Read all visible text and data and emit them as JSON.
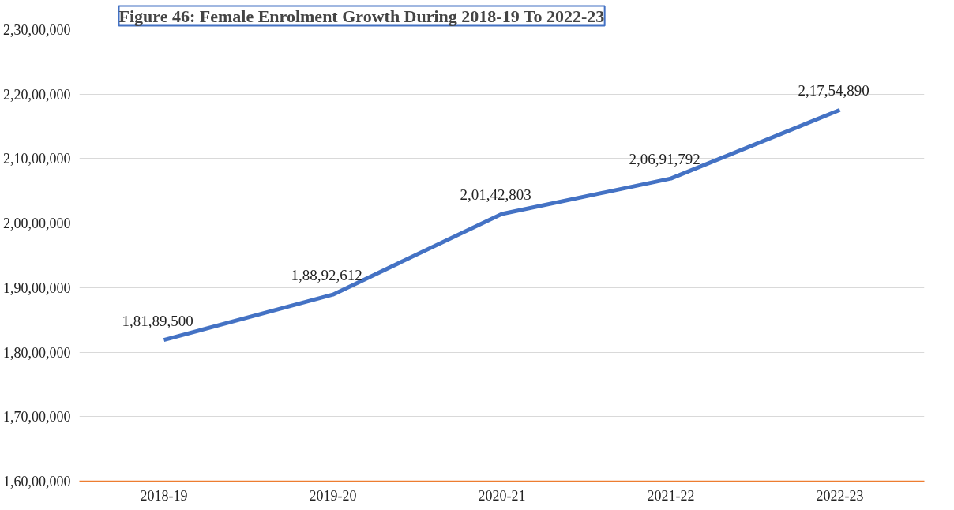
{
  "chart_data": {
    "type": "line",
    "title": "Figure 46: Female Enrolment Growth During 2018-19 To 2022-23",
    "categories": [
      "2018-19",
      "2019-20",
      "2020-21",
      "2021-22",
      "2022-23"
    ],
    "series": [
      {
        "color": "#4472c4",
        "values": [
          18189500,
          18892612,
          20142803,
          20691792,
          21754890
        ],
        "value_labels": [
          "1,81,89,500",
          "1,88,92,612",
          "2,01,42,803",
          "2,06,91,792",
          "2,17,54,890"
        ]
      }
    ],
    "ylim": [
      16000000,
      23000000
    ],
    "yticks": [
      {
        "value": 16000000,
        "label": "1,60,00,000"
      },
      {
        "value": 17000000,
        "label": "1,70,00,000"
      },
      {
        "value": 18000000,
        "label": "1,80,00,000"
      },
      {
        "value": 19000000,
        "label": "1,90,00,000"
      },
      {
        "value": 20000000,
        "label": "2,00,00,000"
      },
      {
        "value": 21000000,
        "label": "2,10,00,000"
      },
      {
        "value": 22000000,
        "label": "2,20,00,000"
      },
      {
        "value": 23000000,
        "label": "2,30,00,000"
      }
    ],
    "grid": "y"
  }
}
